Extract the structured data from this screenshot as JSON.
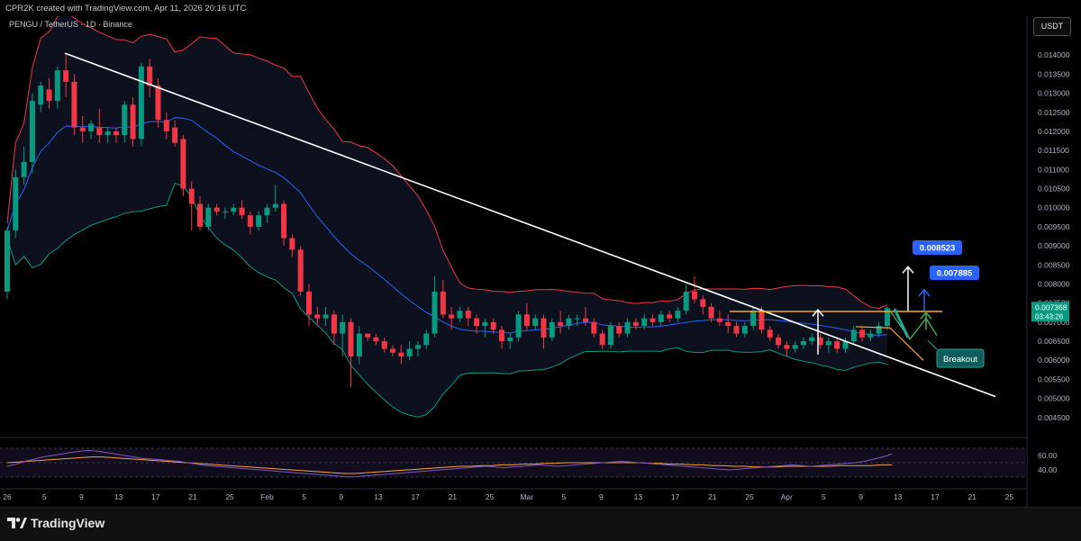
{
  "header": {
    "credit": "CPR2K created with TradingView.com, Apr 11, 2026 20:16 UTC",
    "symbol": "PENGU / TetherUS · 1D · Binance",
    "currency_button": "USDT"
  },
  "footer": {
    "brand": "TradingView",
    "logo_icon": "tradingview-logo-icon"
  },
  "chart_data": [
    {
      "type": "candlestick",
      "symbol": "PENGU / TetherUS",
      "interval": "1D",
      "exchange": "Binance",
      "ylim": [
        0.004,
        0.0145
      ],
      "yticks": [
        "0.014000",
        "0.013500",
        "0.013000",
        "0.012500",
        "0.012000",
        "0.011500",
        "0.011000",
        "0.010500",
        "0.010000",
        "0.009500",
        "0.009000",
        "0.008500",
        "0.008000",
        "0.007500",
        "0.007000",
        "0.006500",
        "0.006000",
        "0.005500",
        "0.005000",
        "0.004500"
      ],
      "xticks": [
        "26",
        "5",
        "9",
        "13",
        "17",
        "21",
        "25",
        "Feb",
        "5",
        "9",
        "13",
        "17",
        "21",
        "25",
        "Mar",
        "5",
        "9",
        "13",
        "17",
        "21",
        "25",
        "Apr",
        "5",
        "9",
        "13",
        "17",
        "21",
        "25"
      ],
      "candles": [
        [
          0.0078,
          0.0095,
          0.0076,
          0.0094
        ],
        [
          0.0094,
          0.011,
          0.0092,
          0.0108
        ],
        [
          0.0108,
          0.0116,
          0.0106,
          0.0112
        ],
        [
          0.0112,
          0.013,
          0.0109,
          0.0128
        ],
        [
          0.0127,
          0.0133,
          0.0125,
          0.0132
        ],
        [
          0.0131,
          0.0134,
          0.0126,
          0.0128
        ],
        [
          0.0128,
          0.0137,
          0.0126,
          0.0136
        ],
        [
          0.0136,
          0.014,
          0.0129,
          0.0133
        ],
        [
          0.0133,
          0.0135,
          0.0119,
          0.0121
        ],
        [
          0.0121,
          0.0124,
          0.0117,
          0.012
        ],
        [
          0.012,
          0.0123,
          0.0118,
          0.0122
        ],
        [
          0.0121,
          0.0126,
          0.0117,
          0.0119
        ],
        [
          0.0119,
          0.0121,
          0.0117,
          0.012
        ],
        [
          0.012,
          0.0121,
          0.0117,
          0.0119
        ],
        [
          0.0119,
          0.0128,
          0.0117,
          0.0127
        ],
        [
          0.0127,
          0.0129,
          0.0116,
          0.0118
        ],
        [
          0.0118,
          0.0138,
          0.0116,
          0.0137
        ],
        [
          0.0137,
          0.0139,
          0.0129,
          0.0132
        ],
        [
          0.0132,
          0.0134,
          0.0121,
          0.0123
        ],
        [
          0.0123,
          0.0125,
          0.0118,
          0.012
        ],
        [
          0.0121,
          0.0123,
          0.0116,
          0.0117
        ],
        [
          0.0118,
          0.0119,
          0.0103,
          0.0105
        ],
        [
          0.0105,
          0.0107,
          0.0094,
          0.0101
        ],
        [
          0.0101,
          0.0103,
          0.0094,
          0.0095
        ],
        [
          0.0095,
          0.0101,
          0.0094,
          0.01
        ],
        [
          0.01,
          0.0101,
          0.0098,
          0.0099
        ],
        [
          0.0099,
          0.01,
          0.0097,
          0.0099
        ],
        [
          0.0099,
          0.0101,
          0.0098,
          0.01
        ],
        [
          0.01,
          0.0102,
          0.0097,
          0.0098
        ],
        [
          0.0098,
          0.0099,
          0.0093,
          0.0095
        ],
        [
          0.0095,
          0.0099,
          0.0094,
          0.0098
        ],
        [
          0.0098,
          0.0101,
          0.0096,
          0.01
        ],
        [
          0.01,
          0.0106,
          0.0099,
          0.0101
        ],
        [
          0.0101,
          0.0102,
          0.009,
          0.0092
        ],
        [
          0.0092,
          0.0093,
          0.0087,
          0.0089
        ],
        [
          0.0089,
          0.009,
          0.0077,
          0.0078
        ],
        [
          0.0078,
          0.008,
          0.0069,
          0.0072
        ],
        [
          0.0072,
          0.0074,
          0.0069,
          0.0071
        ],
        [
          0.0071,
          0.0074,
          0.0069,
          0.0072
        ],
        [
          0.0072,
          0.0073,
          0.0064,
          0.0067
        ],
        [
          0.0067,
          0.0072,
          0.0061,
          0.007
        ],
        [
          0.007,
          0.0071,
          0.0053,
          0.0061
        ],
        [
          0.0061,
          0.0069,
          0.0059,
          0.0067
        ],
        [
          0.0067,
          0.0067,
          0.0065,
          0.0066
        ],
        [
          0.0066,
          0.0067,
          0.0064,
          0.0065
        ],
        [
          0.0065,
          0.0066,
          0.0062,
          0.0063
        ],
        [
          0.0063,
          0.0064,
          0.0061,
          0.0062
        ],
        [
          0.0062,
          0.0064,
          0.0059,
          0.0061
        ],
        [
          0.0061,
          0.0065,
          0.006,
          0.0063
        ],
        [
          0.0063,
          0.0065,
          0.0061,
          0.0064
        ],
        [
          0.0064,
          0.0068,
          0.0063,
          0.0067
        ],
        [
          0.0067,
          0.0082,
          0.0066,
          0.0078
        ],
        [
          0.0078,
          0.0081,
          0.0071,
          0.0072
        ],
        [
          0.0072,
          0.0074,
          0.0068,
          0.0071
        ],
        [
          0.0071,
          0.0074,
          0.007,
          0.0073
        ],
        [
          0.0073,
          0.0074,
          0.0069,
          0.0071
        ],
        [
          0.0071,
          0.0072,
          0.0067,
          0.0069
        ],
        [
          0.0069,
          0.0071,
          0.0066,
          0.007
        ],
        [
          0.007,
          0.0071,
          0.0067,
          0.0068
        ],
        [
          0.0068,
          0.0069,
          0.0063,
          0.0065
        ],
        [
          0.0065,
          0.0067,
          0.0063,
          0.0066
        ],
        [
          0.0066,
          0.0073,
          0.0065,
          0.0072
        ],
        [
          0.0072,
          0.0075,
          0.0068,
          0.0069
        ],
        [
          0.0069,
          0.0072,
          0.0068,
          0.0071
        ],
        [
          0.0071,
          0.0072,
          0.0063,
          0.0066
        ],
        [
          0.0066,
          0.0071,
          0.0065,
          0.007
        ],
        [
          0.007,
          0.0073,
          0.0067,
          0.0069
        ],
        [
          0.0069,
          0.0072,
          0.0068,
          0.0071
        ],
        [
          0.0071,
          0.0072,
          0.0069,
          0.0071
        ],
        [
          0.0071,
          0.0074,
          0.0069,
          0.007
        ],
        [
          0.007,
          0.0071,
          0.0066,
          0.0067
        ],
        [
          0.0067,
          0.0068,
          0.0063,
          0.0064
        ],
        [
          0.0064,
          0.007,
          0.0063,
          0.0069
        ],
        [
          0.0069,
          0.007,
          0.0066,
          0.0067
        ],
        [
          0.0067,
          0.0071,
          0.0066,
          0.007
        ],
        [
          0.007,
          0.0071,
          0.0068,
          0.0069
        ],
        [
          0.0069,
          0.0072,
          0.0068,
          0.0071
        ],
        [
          0.0071,
          0.0072,
          0.0069,
          0.007
        ],
        [
          0.007,
          0.0073,
          0.0069,
          0.0072
        ],
        [
          0.0072,
          0.0073,
          0.007,
          0.0071
        ],
        [
          0.0071,
          0.0074,
          0.007,
          0.0073
        ],
        [
          0.0073,
          0.008,
          0.0072,
          0.0078
        ],
        [
          0.0078,
          0.0082,
          0.0075,
          0.0076
        ],
        [
          0.0076,
          0.0077,
          0.0072,
          0.0074
        ],
        [
          0.0074,
          0.0075,
          0.007,
          0.0071
        ],
        [
          0.0071,
          0.0073,
          0.0069,
          0.007
        ],
        [
          0.007,
          0.0072,
          0.0067,
          0.0069
        ],
        [
          0.0069,
          0.007,
          0.0066,
          0.0067
        ],
        [
          0.0067,
          0.007,
          0.0066,
          0.0069
        ],
        [
          0.0069,
          0.0074,
          0.0068,
          0.0073
        ],
        [
          0.0073,
          0.0074,
          0.0067,
          0.0068
        ],
        [
          0.0068,
          0.0069,
          0.0065,
          0.0066
        ],
        [
          0.0066,
          0.0067,
          0.0063,
          0.0064
        ],
        [
          0.0064,
          0.0065,
          0.0061,
          0.0063
        ],
        [
          0.0063,
          0.0065,
          0.0062,
          0.0064
        ],
        [
          0.0064,
          0.0066,
          0.0063,
          0.0065
        ],
        [
          0.0065,
          0.0067,
          0.0064,
          0.0066
        ],
        [
          0.0066,
          0.0067,
          0.0063,
          0.0064
        ],
        [
          0.0064,
          0.0066,
          0.0062,
          0.0065
        ],
        [
          0.0065,
          0.0066,
          0.0062,
          0.0063
        ],
        [
          0.0063,
          0.0066,
          0.0062,
          0.0065
        ],
        [
          0.0065,
          0.0069,
          0.0064,
          0.0068
        ],
        [
          0.0068,
          0.0069,
          0.0065,
          0.0066
        ],
        [
          0.0066,
          0.0068,
          0.0065,
          0.0067
        ],
        [
          0.0067,
          0.007,
          0.0066,
          0.0069
        ],
        [
          0.0069,
          0.0074,
          0.0068,
          0.007368
        ]
      ],
      "bollinger": {
        "upper_color": "#f23645",
        "mid_color": "#2962ff",
        "lower_color": "#089981"
      },
      "annotations": {
        "price_labels": [
          "0.008523",
          "0.007885"
        ],
        "breakout_label": "Breakout",
        "current_price": "0.007368",
        "countdown": "03:43:26",
        "resistance": 0.00728
      }
    },
    {
      "type": "line",
      "name": "RSI",
      "yticks": [
        "60.00",
        "40.00"
      ],
      "ylim": [
        20,
        80
      ],
      "values": [
        45,
        48,
        52,
        55,
        58,
        60,
        62,
        64,
        66,
        67,
        66,
        64,
        62,
        60,
        58,
        56,
        55,
        54,
        53,
        52,
        50,
        48,
        46,
        45,
        44,
        43,
        42,
        41,
        40,
        39,
        38,
        37,
        36,
        35,
        34,
        33,
        32,
        31,
        30,
        31,
        32,
        33,
        34,
        35,
        36,
        37,
        38,
        39,
        40,
        41,
        42,
        43,
        44,
        45,
        44,
        43,
        44,
        45,
        46,
        47,
        46,
        45,
        46,
        47,
        48,
        49,
        50,
        51,
        52,
        51,
        50,
        49,
        48,
        47,
        46,
        45,
        44,
        43,
        42,
        41,
        40,
        41,
        42,
        43,
        44,
        45,
        46,
        47,
        46,
        45,
        46,
        47,
        48,
        49,
        50,
        52,
        55,
        58,
        62
      ],
      "signal": [
        50,
        51,
        52,
        53,
        54,
        55,
        56,
        57,
        58,
        58,
        57,
        56,
        55,
        54,
        53,
        52,
        51,
        50,
        49,
        48,
        47,
        46,
        45,
        44,
        43,
        42,
        41,
        40,
        39,
        38,
        37,
        36,
        35,
        35,
        36,
        37,
        38,
        39,
        40,
        41,
        42,
        43,
        44,
        45,
        45,
        46,
        46,
        47,
        47,
        48,
        48,
        49,
        49,
        50,
        50,
        50,
        50,
        50,
        50,
        50,
        50,
        49,
        49,
        48,
        48,
        47,
        47,
        46,
        46,
        45,
        45,
        44,
        44,
        44,
        45,
        45,
        45,
        45,
        45,
        46,
        46,
        46,
        46,
        47,
        47
      ]
    }
  ],
  "colors": {
    "up": "#089981",
    "down": "#f23645",
    "trendline": "#ffffff",
    "resistance": "#ffa726",
    "badge": "#2962ff",
    "breakout_badge": "#0f5c5a",
    "rsi": "#7e57c2",
    "rsi_signal": "#f7a440"
  }
}
